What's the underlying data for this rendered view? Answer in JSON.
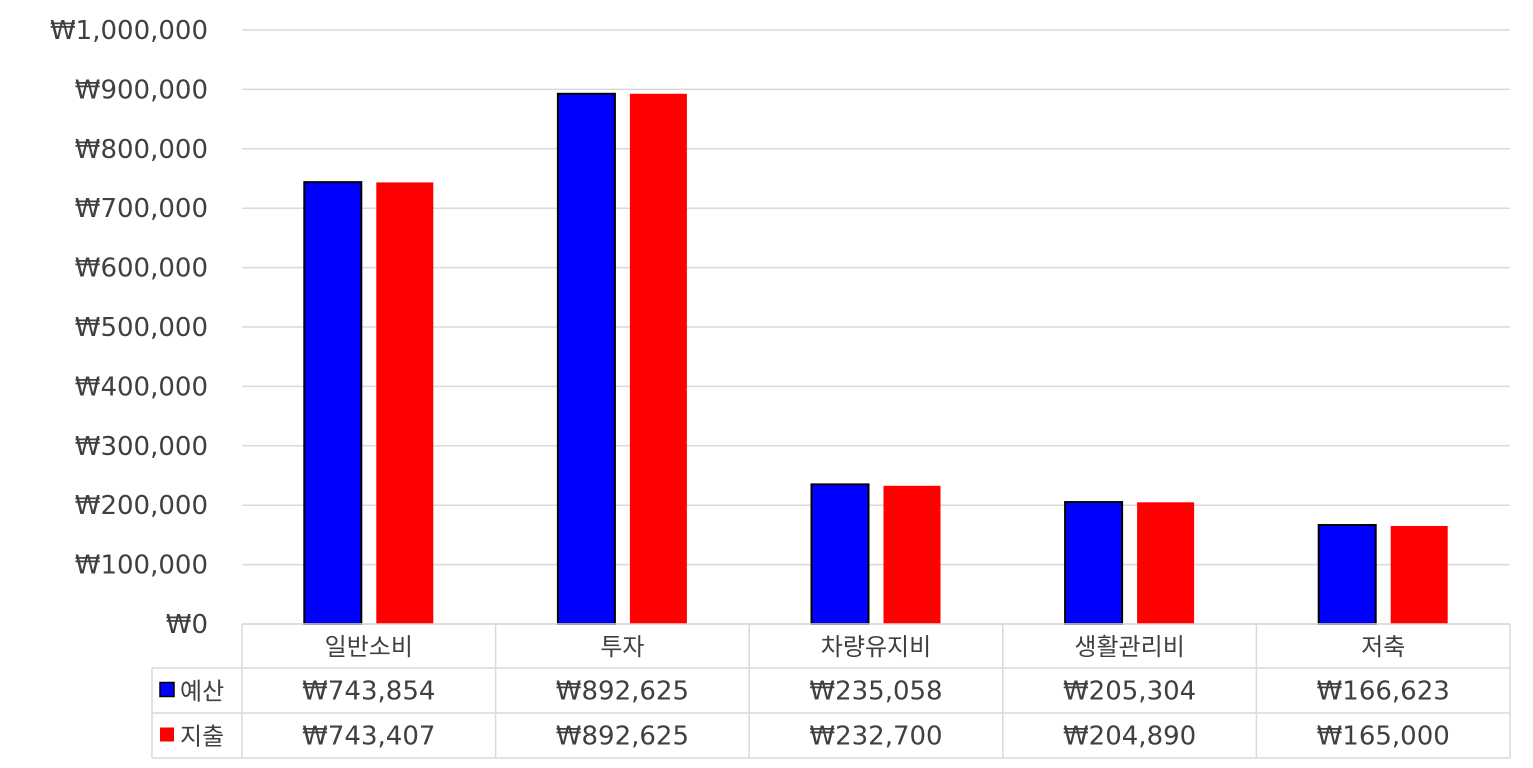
{
  "chart_data": {
    "type": "bar",
    "categories": [
      "일반소비",
      "투자",
      "차량유지비",
      "생활관리비",
      "저축"
    ],
    "series": [
      {
        "name": "예산",
        "color": "#0000ff",
        "values": [
          743854,
          892625,
          235058,
          205304,
          166623
        ],
        "labels": [
          "₩743,854",
          "₩892,625",
          "₩235,058",
          "₩205,304",
          "₩166,623"
        ]
      },
      {
        "name": "지출",
        "color": "#ff0000",
        "values": [
          743407,
          892625,
          232700,
          204890,
          165000
        ],
        "labels": [
          "₩743,407",
          "₩892,625",
          "₩232,700",
          "₩204,890",
          "₩165,000"
        ]
      }
    ],
    "ylim": [
      0,
      1000000
    ],
    "yticks": [
      {
        "value": 0,
        "label": "₩0"
      },
      {
        "value": 100000,
        "label": "₩100,000"
      },
      {
        "value": 200000,
        "label": "₩200,000"
      },
      {
        "value": 300000,
        "label": "₩300,000"
      },
      {
        "value": 400000,
        "label": "₩400,000"
      },
      {
        "value": 500000,
        "label": "₩500,000"
      },
      {
        "value": 600000,
        "label": "₩600,000"
      },
      {
        "value": 700000,
        "label": "₩700,000"
      },
      {
        "value": 800000,
        "label": "₩800,000"
      },
      {
        "value": 900000,
        "label": "₩900,000"
      },
      {
        "value": 1000000,
        "label": "₩1,000,000"
      }
    ],
    "grid": true,
    "legend": "data-table-rows"
  }
}
